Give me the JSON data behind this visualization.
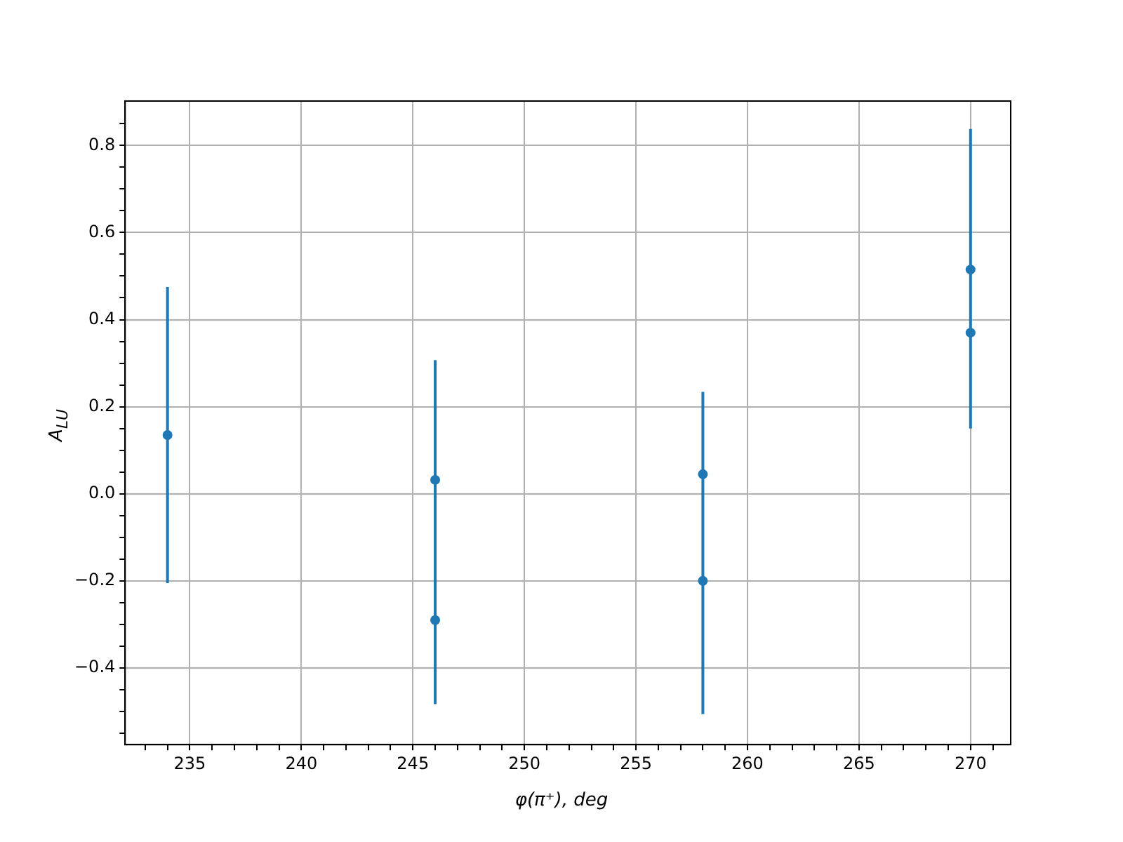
{
  "chart_data": {
    "type": "scatter",
    "xlabel": "φ(π⁺), deg",
    "ylabel": "A$_{LU}$",
    "series": [
      {
        "color": "#1f77b4",
        "x": [
          234,
          246,
          246,
          258,
          258,
          270,
          270
        ],
        "values": [
          0.135,
          0.032,
          -0.29,
          0.045,
          -0.2,
          0.515,
          0.37
        ],
        "errors": [
          0.34,
          [
            -0.483,
            0.307
          ],
          null,
          [
            -0.506,
            0.234
          ],
          null,
          [
            0.15,
            0.838
          ],
          null
        ]
      }
    ],
    "marker": "circle",
    "xlim": [
      232.1,
      271.8
    ],
    "ylim": [
      -0.576,
      0.902
    ],
    "xticks": [
      {
        "value": 233,
        "label": null
      },
      {
        "value": 234,
        "label": null
      },
      235,
      {
        "value": 236,
        "label": null
      },
      {
        "value": 237,
        "label": null
      },
      {
        "value": 238,
        "label": null
      },
      {
        "value": 239,
        "label": null
      },
      240,
      {
        "value": 241,
        "label": null
      },
      {
        "value": 242,
        "label": null
      },
      {
        "value": 243,
        "label": null
      },
      {
        "value": 244,
        "label": null
      },
      245,
      {
        "value": 246,
        "label": null
      },
      {
        "value": 247,
        "label": null
      },
      {
        "value": 248,
        "label": null
      },
      {
        "value": 249,
        "label": null
      },
      250,
      {
        "value": 251,
        "label": null
      },
      {
        "value": 252,
        "label": null
      },
      {
        "value": 253,
        "label": null
      },
      {
        "value": 254,
        "label": null
      },
      255,
      {
        "value": 256,
        "label": null
      },
      {
        "value": 257,
        "label": null
      },
      {
        "value": 258,
        "label": null
      },
      {
        "value": 259,
        "label": null
      },
      260,
      {
        "value": 261,
        "label": null
      },
      {
        "value": 262,
        "label": null
      },
      {
        "value": 263,
        "label": null
      },
      {
        "value": 264,
        "label": null
      },
      265,
      {
        "value": 266,
        "label": null
      },
      {
        "value": 267,
        "label": null
      },
      {
        "value": 268,
        "label": null
      },
      {
        "value": 269,
        "label": null
      },
      270,
      {
        "value": 271,
        "label": null
      }
    ],
    "yticks": [
      {
        "value": -0.55,
        "label": null
      },
      {
        "value": -0.5,
        "label": null
      },
      {
        "value": -0.45,
        "label": null
      },
      {
        "value": -0.4,
        "label": "−0.4"
      },
      {
        "value": -0.35,
        "label": null
      },
      {
        "value": -0.3,
        "label": null
      },
      {
        "value": -0.25,
        "label": null
      },
      {
        "value": -0.2,
        "label": "−0.2"
      },
      {
        "value": -0.15,
        "label": null
      },
      {
        "value": -0.1,
        "label": null
      },
      {
        "value": -0.05,
        "label": null
      },
      {
        "value": 0,
        "label": "0.0"
      },
      {
        "value": 0.05,
        "label": null
      },
      {
        "value": 0.1,
        "label": null
      },
      {
        "value": 0.15,
        "label": null
      },
      0.2,
      {
        "value": 0.25,
        "label": null
      },
      {
        "value": 0.3,
        "label": null
      },
      {
        "value": 0.35,
        "label": null
      },
      0.4,
      {
        "value": 0.45,
        "label": null
      },
      {
        "value": 0.5,
        "label": null
      },
      {
        "value": 0.55,
        "label": null
      },
      0.6,
      {
        "value": 0.65,
        "label": null
      },
      {
        "value": 0.7,
        "label": null
      },
      {
        "value": 0.75,
        "label": null
      },
      0.8,
      {
        "value": 0.85,
        "label": null
      }
    ],
    "grid": true,
    "legend": false
  }
}
